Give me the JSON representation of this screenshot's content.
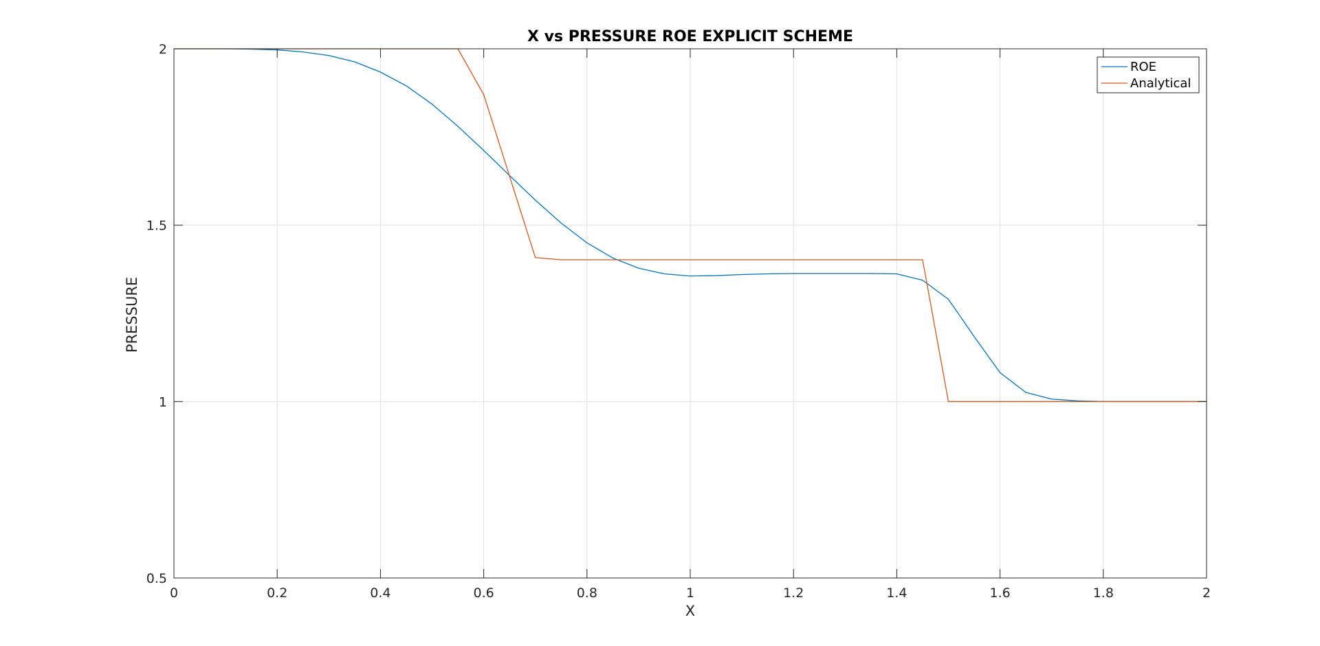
{
  "chart_data": {
    "type": "line",
    "title": "X vs PRESSURE ROE EXPLICIT SCHEME",
    "xlabel": "X",
    "ylabel": "PRESSURE",
    "xlim": [
      0,
      2
    ],
    "ylim": [
      0.5,
      2
    ],
    "xticks": [
      0,
      0.2,
      0.4,
      0.6,
      0.8,
      1,
      1.2,
      1.4,
      1.6,
      1.8,
      2
    ],
    "xtick_labels": [
      "0",
      "0.2",
      "0.4",
      "0.6",
      "0.8",
      "1",
      "1.2",
      "1.4",
      "1.6",
      "1.8",
      "2"
    ],
    "yticks": [
      0.5,
      1,
      1.5,
      2
    ],
    "ytick_labels": [
      "0.5",
      "1",
      "1.5",
      "2"
    ],
    "grid": true,
    "legend_position": "top-right",
    "series": [
      {
        "name": "ROE",
        "color": "#0072BD",
        "x": [
          0,
          0.05,
          0.1,
          0.15,
          0.2,
          0.25,
          0.3,
          0.35,
          0.4,
          0.45,
          0.5,
          0.55,
          0.6,
          0.65,
          0.7,
          0.75,
          0.8,
          0.85,
          0.9,
          0.95,
          1,
          1.05,
          1.1,
          1.15,
          1.2,
          1.25,
          1.3,
          1.35,
          1.4,
          1.45,
          1.5,
          1.55,
          1.6,
          1.65,
          1.7,
          1.75,
          1.8,
          1.85,
          1.9,
          1.95,
          2
        ],
        "y": [
          2,
          2,
          2,
          1.999,
          1.997,
          1.991,
          1.981,
          1.963,
          1.934,
          1.895,
          1.843,
          1.78,
          1.712,
          1.641,
          1.571,
          1.506,
          1.45,
          1.407,
          1.378,
          1.362,
          1.356,
          1.357,
          1.36,
          1.362,
          1.363,
          1.363,
          1.363,
          1.363,
          1.362,
          1.344,
          1.29,
          1.184,
          1.082,
          1.026,
          1.007,
          1.002,
          1,
          1,
          1,
          1,
          1
        ]
      },
      {
        "name": "Analytical",
        "color": "#D95319",
        "x": [
          0,
          0.55,
          0.6,
          0.7,
          0.75,
          1.45,
          1.5,
          2
        ],
        "y": [
          2,
          2,
          1.87,
          1.408,
          1.402,
          1.402,
          1,
          1
        ]
      }
    ]
  }
}
